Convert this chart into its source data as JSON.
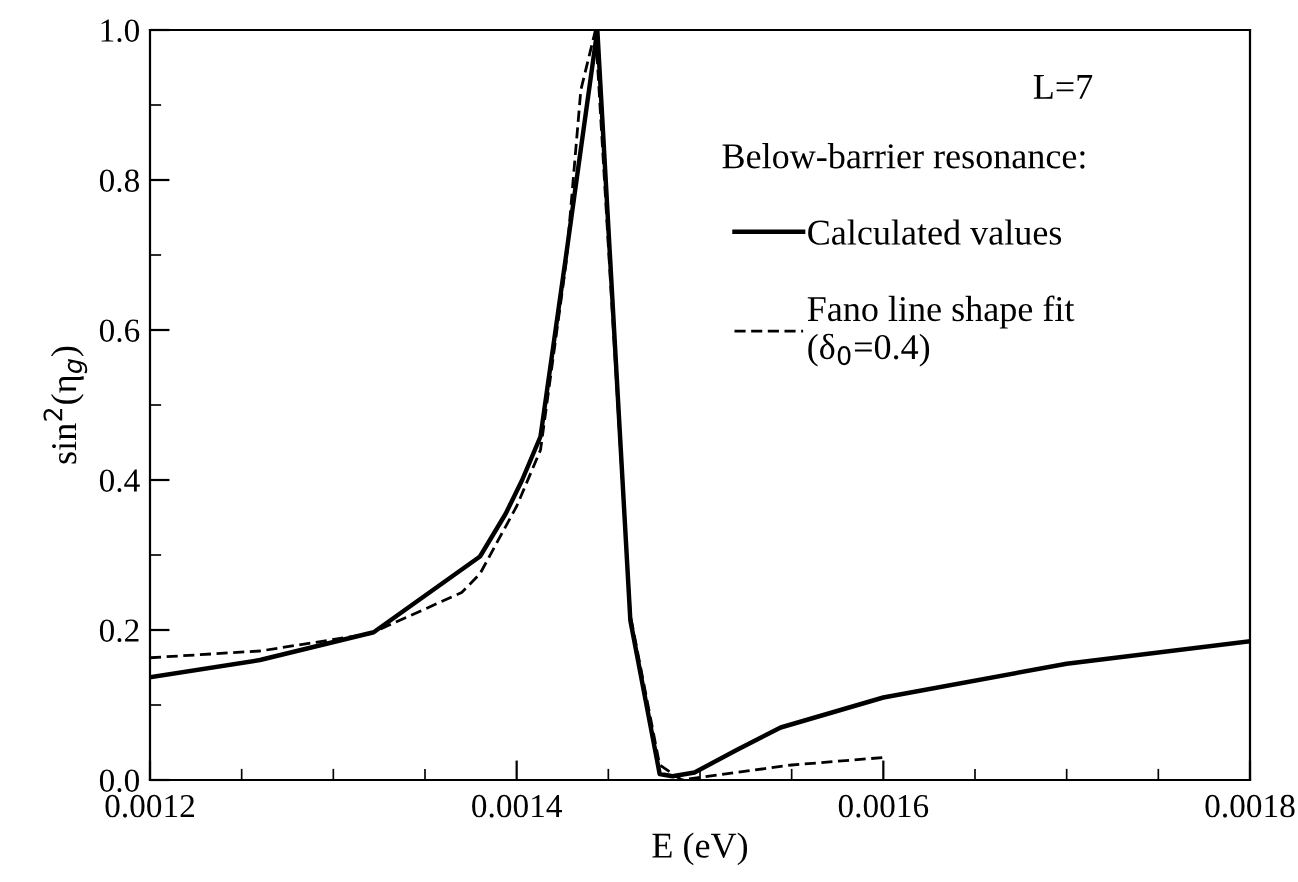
{
  "chart_data": {
    "type": "line",
    "xlabel": "E (eV)",
    "ylabel": "sin$^{2}$(η$_{g}$)",
    "legend_title": "Below-barrier resonance:",
    "annotations": [
      "L=7"
    ],
    "series": [
      {
        "name": "Calculated values",
        "color": "#000000",
        "line_style": "solid",
        "x": [
          0.0012,
          0.00126,
          0.001322,
          0.00138,
          0.001394,
          0.001403,
          0.001413,
          0.001427,
          0.001444,
          0.001462,
          0.001478,
          0.001485,
          0.001497,
          0.00152,
          0.001544,
          0.001593,
          0.0016,
          0.0017,
          0.0018
        ],
        "values": [
          0.137,
          0.16,
          0.197,
          0.298,
          0.355,
          0.4,
          0.458,
          0.7,
          1.0,
          0.213,
          0.008,
          0.005,
          0.01,
          0.04,
          0.07,
          0.105,
          0.11,
          0.155,
          0.185
        ]
      },
      {
        "name": "Fano line shape fit\n(δ$_{0}$=0.4)",
        "color": "#000000",
        "line_style": "dashed",
        "x": [
          0.0012,
          0.00126,
          0.00132,
          0.00137,
          0.00138,
          0.0014,
          0.001413,
          0.001427,
          0.001435,
          0.001443,
          0.001462,
          0.001478,
          0.00149,
          0.00152,
          0.00155,
          0.0016
        ],
        "values": [
          0.163,
          0.172,
          0.195,
          0.25,
          0.275,
          0.365,
          0.44,
          0.69,
          0.92,
          1.0,
          0.22,
          0.02,
          0.0,
          0.01,
          0.02,
          0.03
        ]
      }
    ],
    "xlim": [
      0.0012,
      0.0018
    ],
    "xticks": [
      0.0012,
      0.0014,
      0.0016,
      0.0018
    ],
    "ylim": [
      0.0,
      1.0
    ],
    "yticks": [
      {
        "value": 0.0,
        "label": "0.0"
      },
      {
        "value": 0.2,
        "label": "0.2"
      },
      {
        "value": 0.4,
        "label": "0.4"
      },
      {
        "value": 0.6,
        "label": "0.6"
      },
      {
        "value": 0.8,
        "label": "0.8"
      },
      {
        "value": 1.0,
        "label": "1.0"
      }
    ],
    "legend": "right",
    "marker": "none",
    "grid": false
  }
}
